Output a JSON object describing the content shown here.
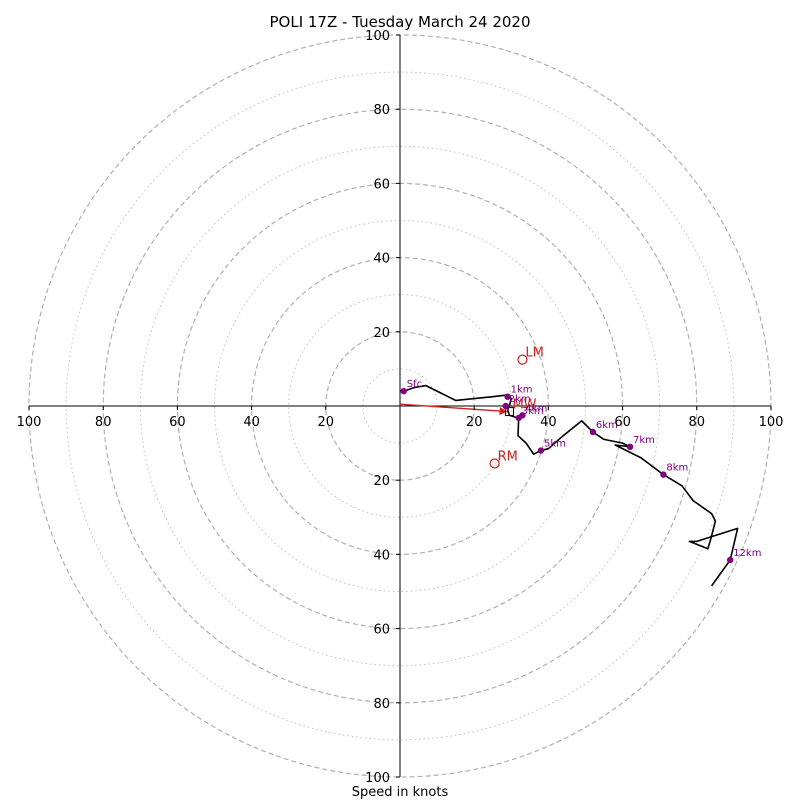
{
  "chart_data": {
    "type": "hodograph",
    "title": "POLI 17Z - Tuesday March 24 2020",
    "xlabel": "Speed in knots",
    "units": "knots",
    "rings": {
      "major": [
        20,
        40,
        60,
        80,
        100
      ],
      "minor": [
        10,
        30,
        50,
        70,
        90
      ]
    },
    "axis_range": [
      -100,
      100
    ],
    "x_ticks": [
      {
        "value": -100,
        "label": "100"
      },
      {
        "value": -80,
        "label": "80"
      },
      {
        "value": -60,
        "label": "60"
      },
      {
        "value": -40,
        "label": "40"
      },
      {
        "value": -20,
        "label": "20"
      },
      {
        "value": 20,
        "label": "20"
      },
      {
        "value": 40,
        "label": "40"
      },
      {
        "value": 60,
        "label": "60"
      },
      {
        "value": 80,
        "label": "80"
      },
      {
        "value": 100,
        "label": "100"
      }
    ],
    "y_ticks": [
      {
        "value": 100,
        "label": "100"
      },
      {
        "value": 80,
        "label": "80"
      },
      {
        "value": 60,
        "label": "60"
      },
      {
        "value": 40,
        "label": "40"
      },
      {
        "value": 20,
        "label": "20"
      },
      {
        "value": -20,
        "label": "20"
      },
      {
        "value": -40,
        "label": "40"
      },
      {
        "value": -60,
        "label": "60"
      },
      {
        "value": -80,
        "label": "80"
      },
      {
        "value": -100,
        "label": "100"
      }
    ],
    "trace": [
      {
        "u": 1,
        "v": 4
      },
      {
        "u": 4,
        "v": 5
      },
      {
        "u": 7,
        "v": 5.5
      },
      {
        "u": 11,
        "v": 3.5
      },
      {
        "u": 15,
        "v": 1.5
      },
      {
        "u": 20,
        "v": 2
      },
      {
        "u": 25,
        "v": 2.5
      },
      {
        "u": 29,
        "v": 3
      },
      {
        "u": 30,
        "v": 2
      },
      {
        "u": 29.5,
        "v": 0
      },
      {
        "u": 29,
        "v": -1
      },
      {
        "u": 29.5,
        "v": -2.5
      },
      {
        "u": 31,
        "v": -3
      },
      {
        "u": 32,
        "v": -3.5
      },
      {
        "u": 33,
        "v": -2.5
      },
      {
        "u": 32,
        "v": -3.2
      },
      {
        "u": 31.8,
        "v": -8
      },
      {
        "u": 34,
        "v": -10
      },
      {
        "u": 36,
        "v": -13
      },
      {
        "u": 38,
        "v": -12
      },
      {
        "u": 40,
        "v": -11.5
      },
      {
        "u": 44,
        "v": -8
      },
      {
        "u": 49,
        "v": -4
      },
      {
        "u": 52,
        "v": -7
      },
      {
        "u": 55,
        "v": -9
      },
      {
        "u": 60,
        "v": -10
      },
      {
        "u": 62,
        "v": -11
      },
      {
        "u": 58,
        "v": -10.5
      },
      {
        "u": 61,
        "v": -12
      },
      {
        "u": 65,
        "v": -14
      },
      {
        "u": 71,
        "v": -18.5
      },
      {
        "u": 76,
        "v": -21.5
      },
      {
        "u": 79,
        "v": -25.5
      },
      {
        "u": 84,
        "v": -29
      },
      {
        "u": 85,
        "v": -31
      },
      {
        "u": 84,
        "v": -35
      },
      {
        "u": 83,
        "v": -38.5
      },
      {
        "u": 78,
        "v": -36.5
      },
      {
        "u": 80,
        "v": -36.5
      },
      {
        "u": 91,
        "v": -33
      },
      {
        "u": 89,
        "v": -41.5
      },
      {
        "u": 84,
        "v": -48.5
      }
    ],
    "height_points": [
      {
        "label": "Sfc",
        "u": 1,
        "v": 4
      },
      {
        "label": "1km",
        "u": 29,
        "v": 2.5
      },
      {
        "label": "2km",
        "u": 28.5,
        "v": 0
      },
      {
        "label": "3km",
        "u": 32,
        "v": -3.2
      },
      {
        "label": "4km",
        "u": 33,
        "v": -2.5
      },
      {
        "label": "5km",
        "u": 38,
        "v": -12
      },
      {
        "label": "6km",
        "u": 52,
        "v": -7
      },
      {
        "label": "7km",
        "u": 62,
        "v": -11
      },
      {
        "label": "8km",
        "u": 71,
        "v": -18.5
      },
      {
        "label": "12km",
        "u": 89,
        "v": -41.5
      }
    ],
    "storm_motions": [
      {
        "label": "LM",
        "u": 33,
        "v": 12.5
      },
      {
        "label": "RM",
        "u": 25.5,
        "v": -15.5
      },
      {
        "label": "MW",
        "u": 29.5,
        "v": -1.5
      }
    ],
    "storm_motion_vector": {
      "from_u": 0,
      "from_v": 0.5,
      "to_u": 29,
      "to_v": -1.5
    },
    "colors": {
      "trace": "#000000",
      "height_point": "#800080",
      "storm_motion": "#cc2222",
      "ring": "#b0b0b0",
      "axis": "#000000"
    }
  }
}
